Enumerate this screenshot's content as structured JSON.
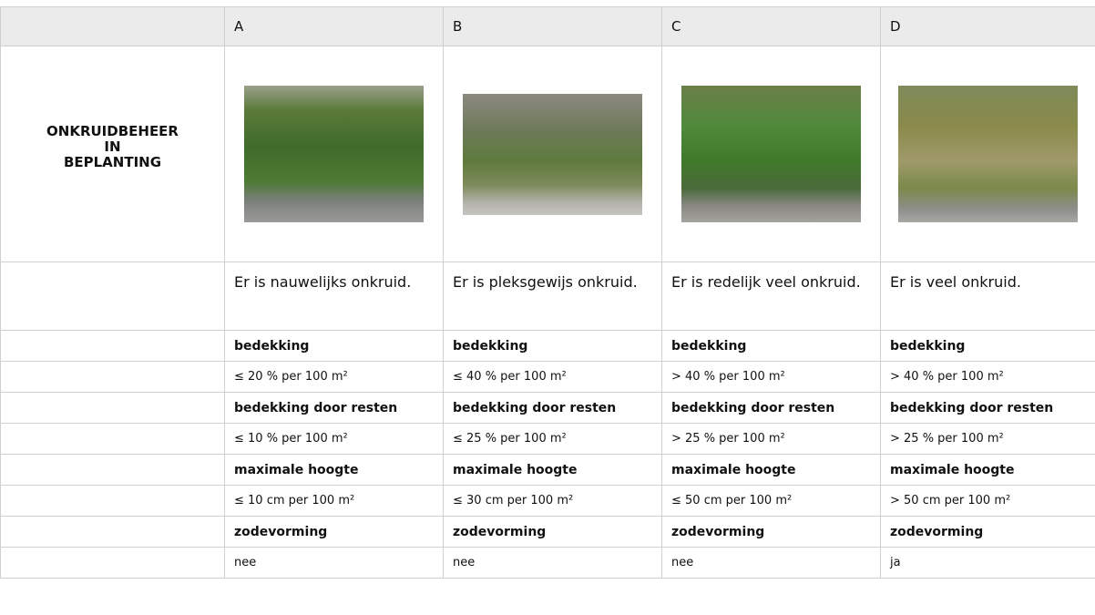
{
  "header": {
    "columns": [
      "A",
      "B",
      "C",
      "D"
    ]
  },
  "title_lines": [
    "ONKRUIDBEHEER",
    "IN",
    "BEPLANTING"
  ],
  "descriptions": [
    "Er is nauwelijks onkruid.",
    "Er is pleksgewijs onkruid.",
    "Er is redelijk veel onkruid.",
    "Er is veel onkruid."
  ],
  "criteria": [
    {
      "label": "bedekking",
      "values": [
        "≤ 20 % per 100 m²",
        "≤ 40 % per 100 m²",
        "> 40 % per 100 m²",
        "> 40 % per 100 m²"
      ]
    },
    {
      "label": "bedekking door resten",
      "values": [
        "≤ 10 % per 100 m²",
        "≤ 25 % per 100 m²",
        "> 25 % per 100 m²",
        "> 25 % per 100 m²"
      ]
    },
    {
      "label": "maximale hoogte",
      "values": [
        "≤ 10 cm per 100 m²",
        "≤ 30 cm per 100 m²",
        "≤ 50 cm per 100 m²",
        "> 50 cm per 100 m²"
      ]
    },
    {
      "label": "zodevorming",
      "values": [
        "nee",
        "nee",
        "nee",
        "ja"
      ]
    }
  ]
}
